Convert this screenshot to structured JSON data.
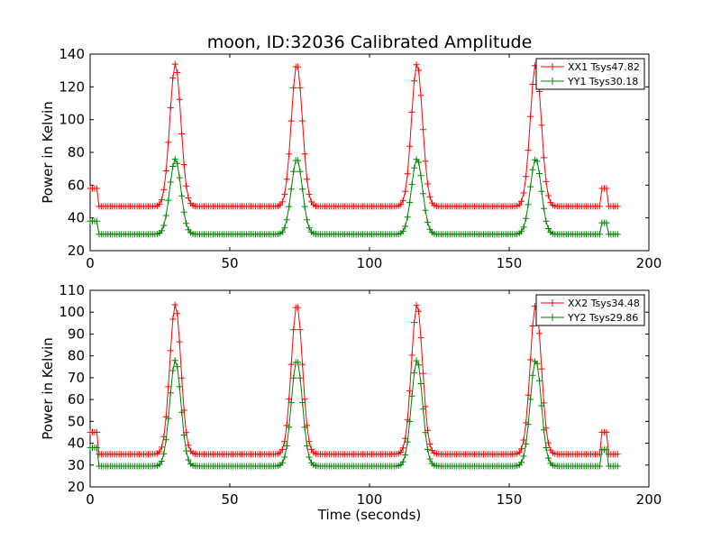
{
  "title": "moon, ID:32036 Calibrated Amplitude",
  "colors": {
    "xx": "#ff0000",
    "yy": "#008000",
    "axes": "#000000"
  },
  "chart_data": [
    {
      "type": "line",
      "title": "moon, ID:32036 Calibrated Amplitude",
      "xlabel": "",
      "ylabel": "Power in Kelvin",
      "xlim": [
        0,
        200
      ],
      "ylim": [
        20,
        140
      ],
      "xticks": [
        0,
        50,
        100,
        150,
        200
      ],
      "yticks": [
        20,
        40,
        60,
        80,
        100,
        120,
        140
      ],
      "grid": false,
      "legend_position": "top-right",
      "series": [
        {
          "name": "XX1 Tsys47.82",
          "color": "#ff0000",
          "marker": "+",
          "base": 47,
          "peak": 134,
          "init_level": 58,
          "end_level": 58
        },
        {
          "name": "YY1 Tsys30.18",
          "color": "#008000",
          "marker": "+",
          "base": 30,
          "peak": 76,
          "init_level": 38,
          "end_level": 37
        }
      ],
      "peak_centers": [
        30.5,
        74,
        117,
        159.5
      ],
      "x_range": [
        0,
        189
      ]
    },
    {
      "type": "line",
      "title": "",
      "xlabel": "Time (seconds)",
      "ylabel": "Power in Kelvin",
      "xlim": [
        0,
        200
      ],
      "ylim": [
        20,
        110
      ],
      "xticks": [
        0,
        50,
        100,
        150,
        200
      ],
      "yticks": [
        20,
        30,
        40,
        50,
        60,
        70,
        80,
        90,
        100,
        110
      ],
      "grid": false,
      "legend_position": "top-right",
      "series": [
        {
          "name": "XX2 Tsys34.48",
          "color": "#ff0000",
          "marker": "+",
          "base": 35,
          "peak": 103.5,
          "init_level": 45,
          "end_level": 45
        },
        {
          "name": "YY2 Tsys29.86",
          "color": "#008000",
          "marker": "+",
          "base": 29.5,
          "peak": 78,
          "init_level": 38,
          "end_level": 37
        }
      ],
      "peak_centers": [
        30.5,
        74,
        117,
        159.5
      ],
      "x_range": [
        0,
        189
      ]
    }
  ]
}
